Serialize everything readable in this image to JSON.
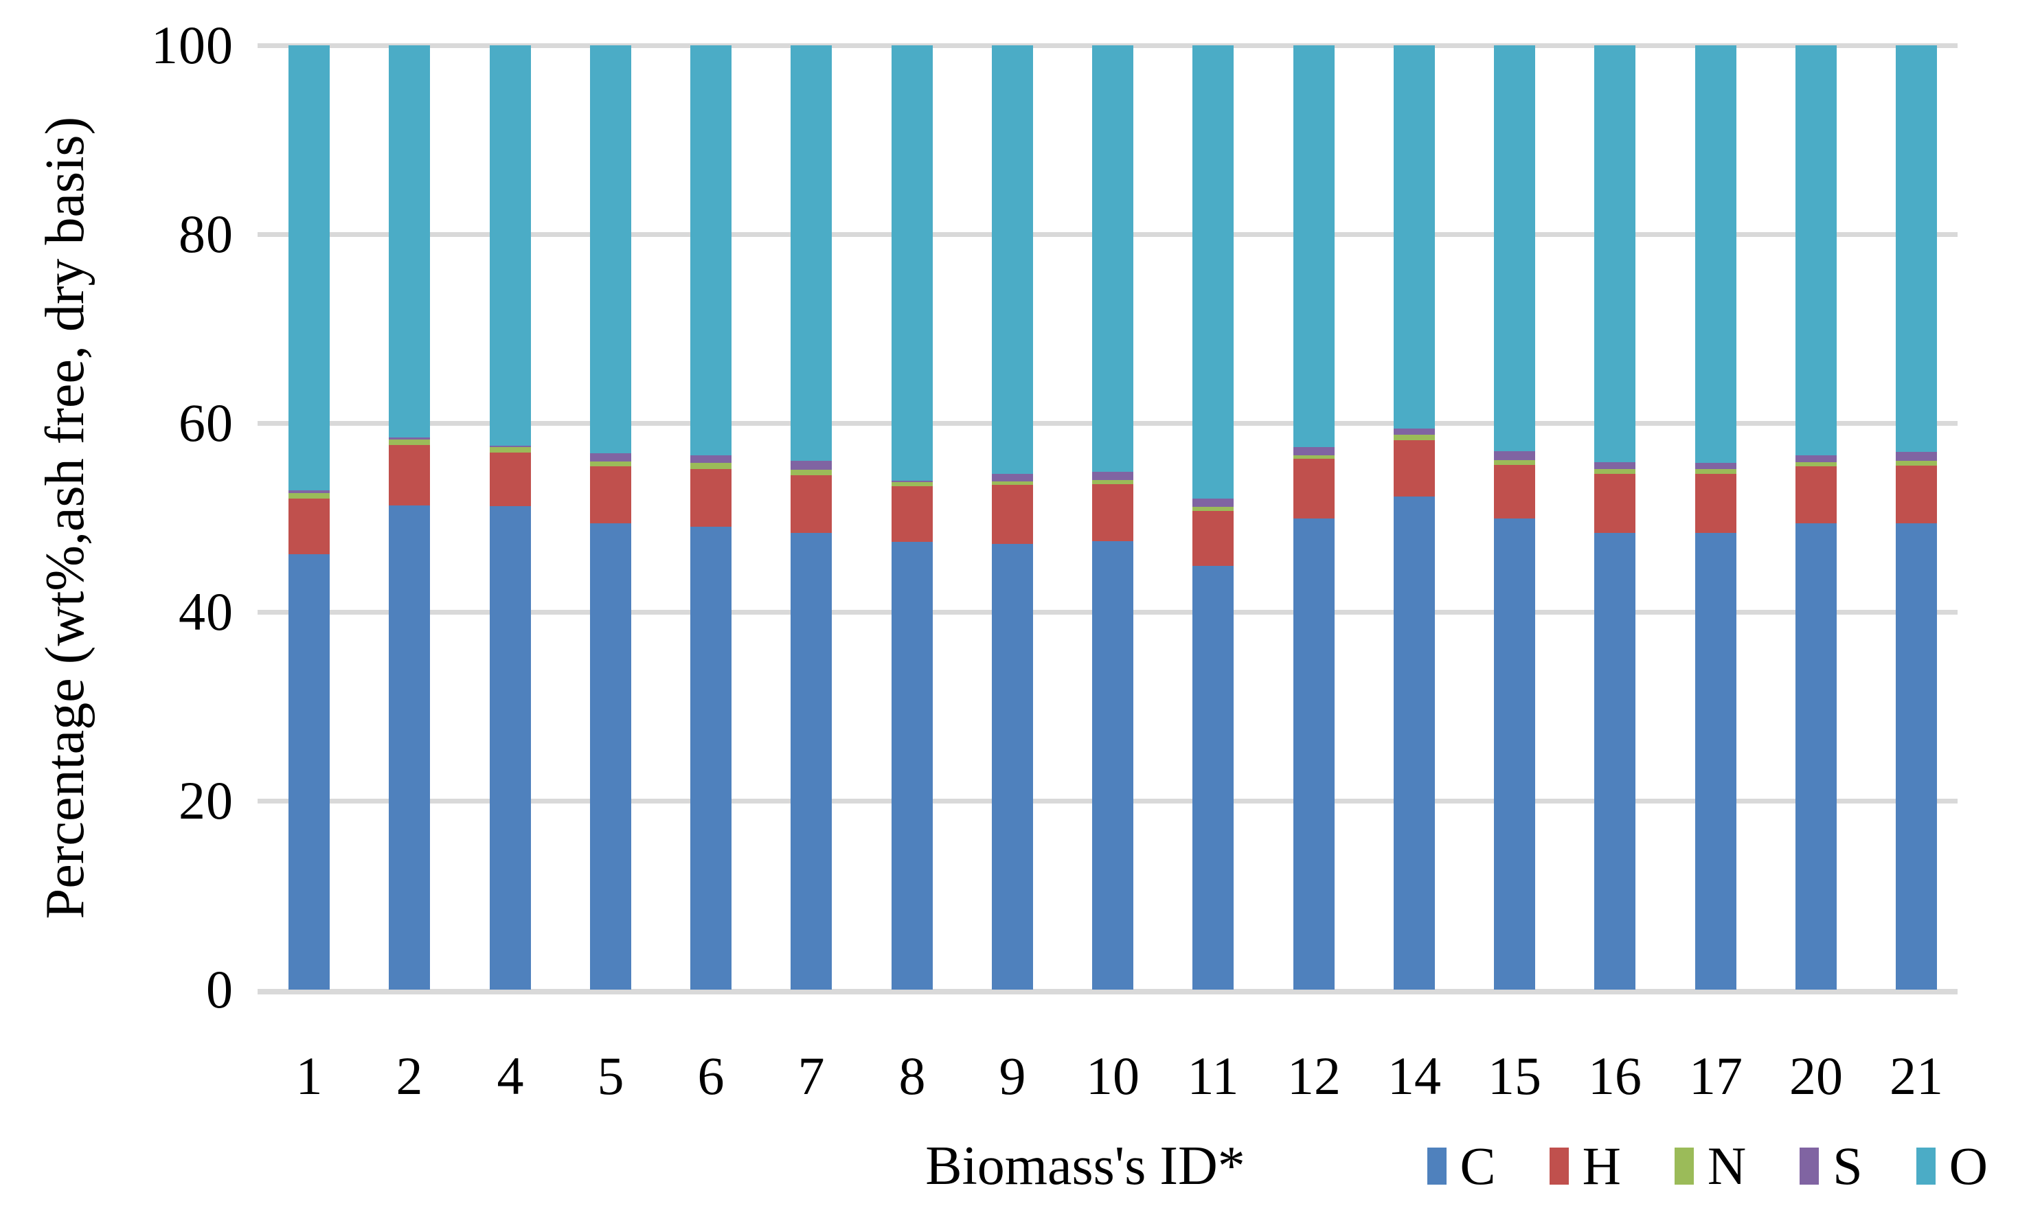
{
  "chart_data": {
    "type": "bar",
    "stacked": true,
    "orientation": "vertical",
    "xlabel": "Biomass's ID*",
    "ylabel": "Percentage (wt%,ash free, dry basis)",
    "ylim": [
      0,
      100
    ],
    "yticks": [
      0,
      20,
      40,
      60,
      80,
      100
    ],
    "grid": true,
    "gridline_color": "#d9d9d9",
    "legend_position": "bottom-right",
    "categories": [
      "1",
      "2",
      "4",
      "5",
      "6",
      "7",
      "8",
      "9",
      "10",
      "11",
      "12",
      "14",
      "15",
      "16",
      "17",
      "20",
      "21"
    ],
    "series": [
      {
        "name": "C",
        "color": "#4f81bd",
        "values": [
          46.1,
          51.3,
          51.2,
          49.4,
          49.0,
          48.4,
          47.4,
          47.2,
          47.5,
          44.9,
          49.9,
          52.2,
          49.9,
          48.4,
          48.4,
          49.4,
          49.4
        ]
      },
      {
        "name": "H",
        "color": "#c0504d",
        "values": [
          5.9,
          6.4,
          5.7,
          6.0,
          6.1,
          6.1,
          5.9,
          6.25,
          6.05,
          5.8,
          6.3,
          6.0,
          5.7,
          6.2,
          6.2,
          6.0,
          6.1
        ]
      },
      {
        "name": "N",
        "color": "#9bbb59",
        "values": [
          0.6,
          0.55,
          0.55,
          0.5,
          0.65,
          0.55,
          0.45,
          0.4,
          0.4,
          0.4,
          0.4,
          0.55,
          0.5,
          0.55,
          0.55,
          0.45,
          0.5
        ]
      },
      {
        "name": "S",
        "color": "#8064a2",
        "values": [
          0.25,
          0.2,
          0.15,
          0.9,
          0.8,
          0.95,
          0.15,
          0.75,
          0.9,
          0.9,
          0.85,
          0.7,
          0.9,
          0.7,
          0.6,
          0.75,
          0.95
        ]
      },
      {
        "name": "O",
        "color": "#4bacc6",
        "values": [
          47.15,
          41.55,
          42.4,
          43.2,
          43.45,
          44.0,
          46.1,
          45.4,
          45.15,
          48.0,
          42.55,
          40.55,
          43.0,
          44.15,
          44.25,
          43.4,
          43.05
        ]
      }
    ]
  },
  "layout_colors": {
    "background": "#ffffff",
    "text": "#000000"
  }
}
